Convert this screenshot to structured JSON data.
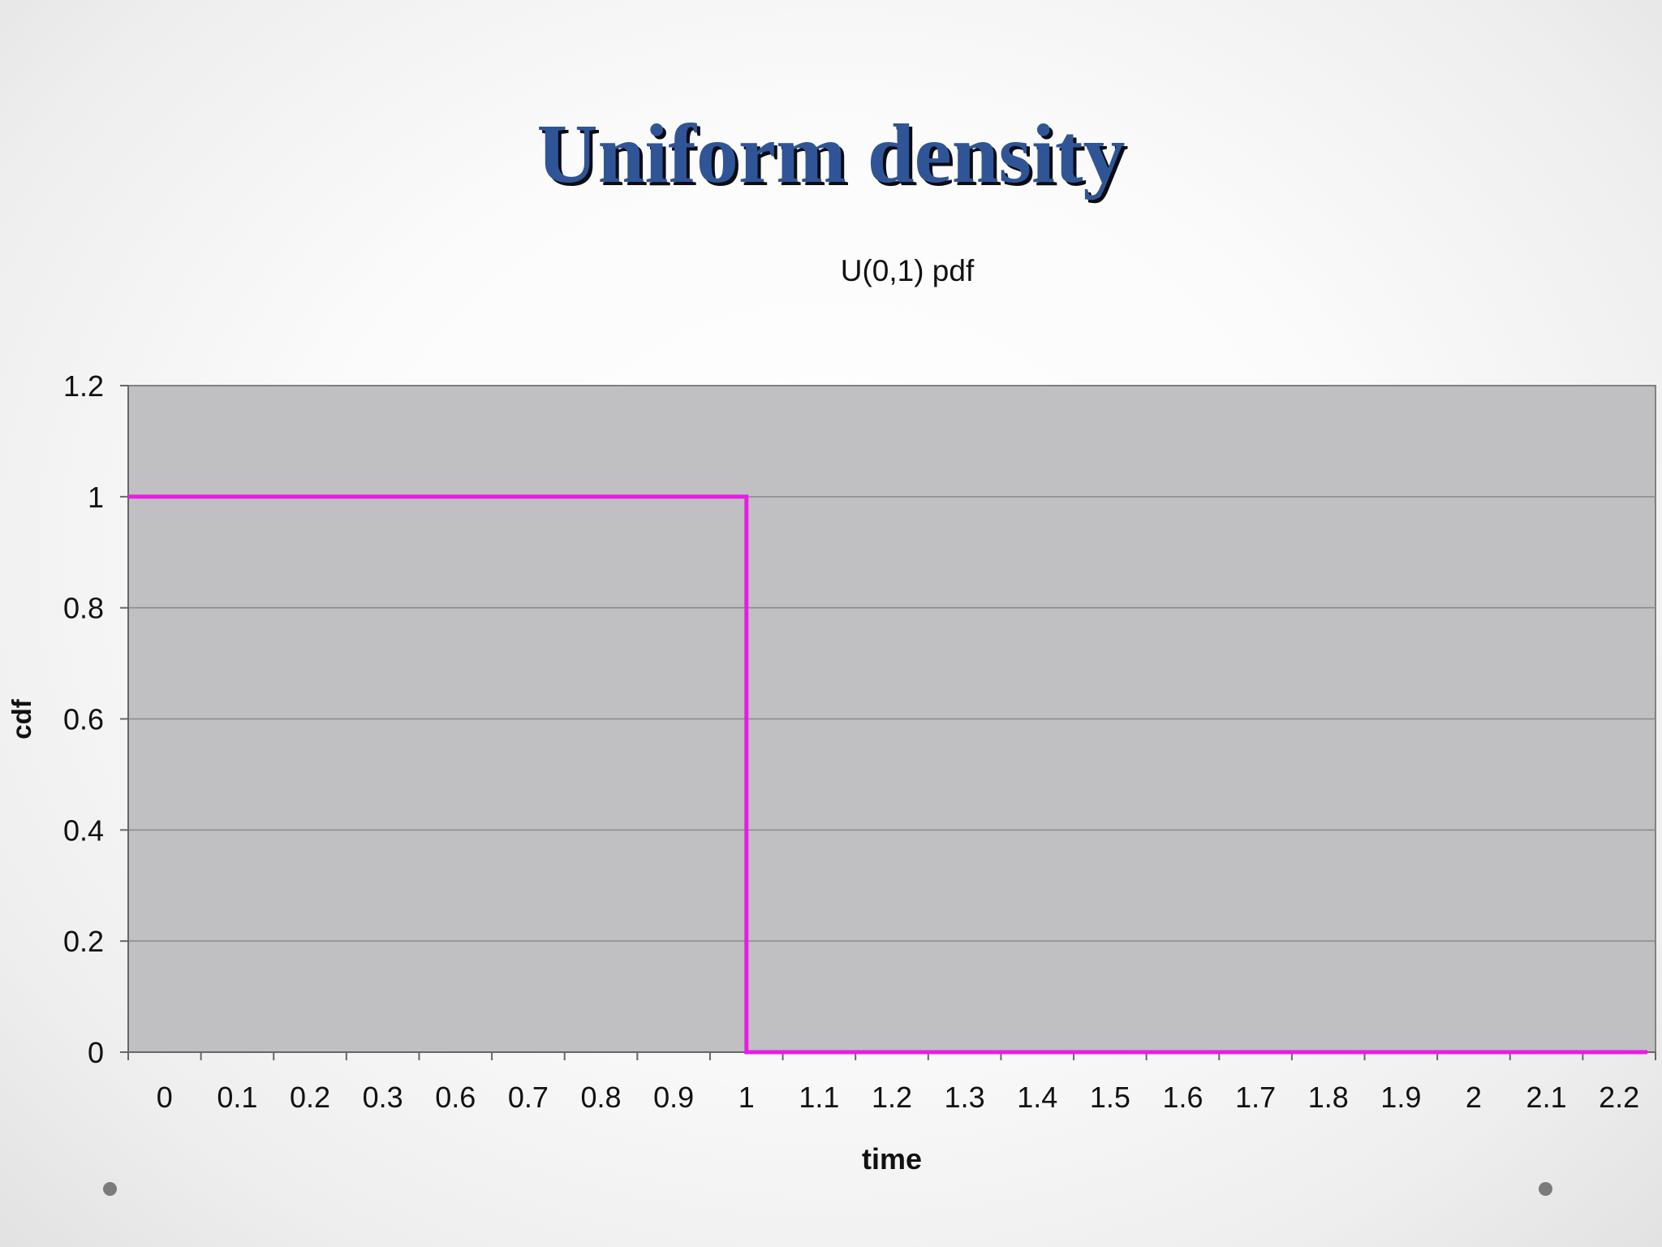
{
  "slide": {
    "title": "Uniform density"
  },
  "colors": {
    "title": "#2f5597",
    "plot_area": "#c0bfc1",
    "series": "#e81ce8",
    "gridline": "#8a8a8a",
    "bullet": "#7b7b7b"
  },
  "chart_data": {
    "type": "line",
    "title": "U(0,1) pdf",
    "xlabel": "time",
    "ylabel": "cdf",
    "categories": [
      "0",
      "0.1",
      "0.2",
      "0.3",
      "0.6",
      "0.7",
      "0.8",
      "0.9",
      "1",
      "1.1",
      "1.2",
      "1.3",
      "1.4",
      "1.5",
      "1.6",
      "1.7",
      "1.8",
      "1.9",
      "2",
      "2.1",
      "2.2"
    ],
    "series": [
      {
        "values": [
          1,
          1,
          1,
          1,
          1,
          1,
          1,
          1,
          0,
          0,
          0,
          0,
          0,
          0,
          0,
          0,
          0,
          0,
          0,
          0,
          0
        ],
        "step_at": "1"
      }
    ],
    "ylim": [
      0,
      1.2
    ],
    "yticks": [
      "0",
      "0.2",
      "0.4",
      "0.6",
      "0.8",
      "1",
      "1.2"
    ],
    "grid": "horizontal",
    "legend": "none"
  }
}
